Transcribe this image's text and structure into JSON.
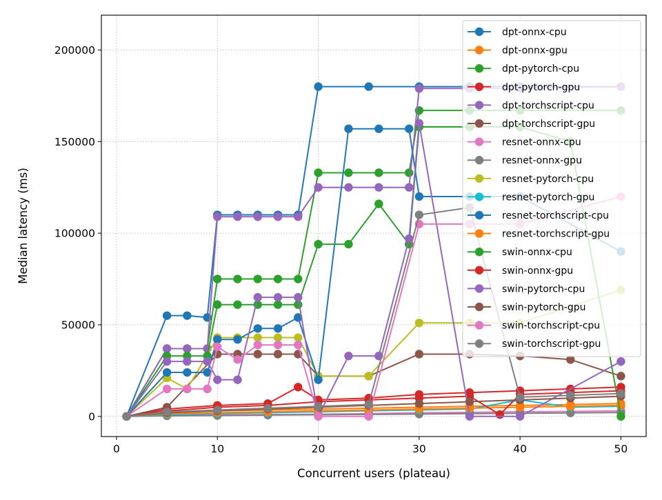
{
  "chart_data": {
    "type": "line",
    "xlabel": "Concurrent users (plateau)",
    "ylabel": "Median latency (ms)",
    "xlim": [
      -1.5,
      52.5
    ],
    "ylim": [
      -11000,
      219000
    ],
    "xticks": [
      0,
      10,
      20,
      30,
      40,
      50
    ],
    "yticks": [
      0,
      50000,
      100000,
      150000,
      200000
    ],
    "grid": "dotted",
    "legend_position": "upper right",
    "series": [
      {
        "name": "dpt-onnx-cpu",
        "color": "#1f77b4",
        "x": [
          1,
          5,
          7,
          9,
          10,
          12,
          14,
          16,
          18,
          20,
          25,
          30,
          35,
          40,
          50
        ],
        "y": [
          0,
          55000,
          55000,
          54000,
          110000,
          110000,
          110000,
          110000,
          110000,
          180000,
          180000,
          180000,
          180000,
          180000,
          180000
        ]
      },
      {
        "name": "dpt-onnx-gpu",
        "color": "#ff7f0e",
        "x": [
          1,
          5,
          10,
          15,
          20,
          25,
          30,
          35,
          40,
          45,
          50
        ],
        "y": [
          0,
          2000,
          3000,
          3500,
          4000,
          4500,
          5000,
          5500,
          6000,
          6500,
          7000
        ]
      },
      {
        "name": "dpt-pytorch-cpu",
        "color": "#2ca02c",
        "x": [
          1,
          5,
          7,
          9,
          10,
          12,
          14,
          16,
          18,
          20,
          23,
          26,
          29,
          30,
          35,
          40,
          50
        ],
        "y": [
          0,
          37000,
          37000,
          37000,
          75000,
          75000,
          75000,
          75000,
          75000,
          133000,
          133000,
          133000,
          133000,
          167000,
          167000,
          167000,
          167000
        ]
      },
      {
        "name": "dpt-pytorch-gpu",
        "color": "#d62728",
        "x": [
          1,
          5,
          10,
          15,
          18,
          20,
          25,
          30,
          35,
          40,
          45,
          50
        ],
        "y": [
          0,
          4000,
          6000,
          7000,
          16000,
          9000,
          10000,
          12000,
          13000,
          14000,
          15000,
          16000
        ]
      },
      {
        "name": "dpt-torchscript-cpu",
        "color": "#9467bd",
        "x": [
          1,
          5,
          7,
          9,
          10,
          12,
          14,
          16,
          18,
          20,
          23,
          26,
          29,
          30,
          35,
          40,
          50
        ],
        "y": [
          0,
          37000,
          37000,
          37000,
          109000,
          109000,
          109000,
          109000,
          109000,
          125000,
          125000,
          125000,
          125000,
          179000,
          179000,
          179000,
          180000
        ]
      },
      {
        "name": "dpt-torchscript-gpu",
        "color": "#8c564b",
        "x": [
          1,
          5,
          10,
          12,
          14,
          16,
          18,
          20,
          25,
          30,
          35,
          40,
          45,
          50
        ],
        "y": [
          0,
          5000,
          34000,
          34000,
          34000,
          34000,
          34000,
          22000,
          22000,
          34000,
          34000,
          33000,
          31000,
          22000
        ]
      },
      {
        "name": "resnet-onnx-cpu",
        "color": "#e377c2",
        "x": [
          1,
          5,
          10,
          15,
          20,
          25,
          30,
          35,
          40,
          50
        ],
        "y": [
          0,
          500,
          800,
          1000,
          1200,
          1500,
          2000,
          2200,
          2500,
          3000
        ]
      },
      {
        "name": "resnet-onnx-gpu",
        "color": "#7f7f7f",
        "x": [
          1,
          5,
          10,
          15,
          20,
          25,
          30,
          35,
          40,
          45,
          50
        ],
        "y": [
          0,
          300,
          500,
          700,
          900,
          1100,
          1300,
          1500,
          1700,
          1900,
          2100
        ]
      },
      {
        "name": "resnet-pytorch-cpu",
        "color": "#bcbd22",
        "x": [
          1,
          5,
          7,
          10,
          12,
          14,
          16,
          18,
          20,
          25,
          30,
          35,
          40,
          50
        ],
        "y": [
          0,
          21000,
          15000,
          43000,
          43000,
          43000,
          43000,
          43000,
          22000,
          22000,
          51000,
          51000,
          51000,
          69000
        ]
      },
      {
        "name": "resnet-pytorch-gpu",
        "color": "#17becf",
        "x": [
          1,
          5,
          10,
          15,
          20,
          25,
          30,
          35,
          40,
          45,
          50
        ],
        "y": [
          0,
          1000,
          1500,
          2000,
          2500,
          3000,
          3500,
          4000,
          9000,
          5000,
          5500
        ]
      },
      {
        "name": "resnet-torchscript-cpu",
        "color": "#1f77b4",
        "x": [
          1,
          5,
          7,
          9,
          10,
          12,
          14,
          16,
          18,
          20,
          23,
          26,
          29,
          30,
          35,
          40,
          50
        ],
        "y": [
          0,
          24000,
          24000,
          24000,
          42000,
          42000,
          48000,
          48000,
          54000,
          20000,
          157000,
          157000,
          157000,
          120000,
          120000,
          120000,
          90000
        ]
      },
      {
        "name": "resnet-torchscript-gpu",
        "color": "#ff7f0e",
        "x": [
          1,
          5,
          10,
          15,
          20,
          25,
          30,
          35,
          40,
          45,
          50
        ],
        "y": [
          0,
          1500,
          2000,
          2500,
          3000,
          3500,
          4000,
          4500,
          5000,
          5500,
          6000
        ]
      },
      {
        "name": "swin-onnx-cpu",
        "color": "#2ca02c",
        "x": [
          1,
          5,
          7,
          9,
          10,
          12,
          14,
          16,
          18,
          20,
          23,
          26,
          29,
          30,
          35,
          40,
          45,
          50
        ],
        "y": [
          0,
          33000,
          33000,
          33000,
          61000,
          61000,
          61000,
          61000,
          61000,
          94000,
          94000,
          116000,
          94000,
          158000,
          158000,
          158000,
          150000,
          0
        ]
      },
      {
        "name": "swin-onnx-gpu",
        "color": "#d62728",
        "x": [
          1,
          5,
          10,
          15,
          20,
          25,
          30,
          35,
          38,
          40,
          45,
          50
        ],
        "y": [
          0,
          3000,
          5000,
          6000,
          8000,
          9000,
          10000,
          11000,
          1000,
          12000,
          13000,
          14000
        ]
      },
      {
        "name": "swin-pytorch-cpu",
        "color": "#9467bd",
        "x": [
          1,
          5,
          7,
          9,
          10,
          12,
          14,
          16,
          18,
          20,
          23,
          26,
          29,
          30,
          35,
          40,
          50
        ],
        "y": [
          0,
          30000,
          30000,
          30000,
          20000,
          20000,
          65000,
          65000,
          65000,
          0,
          33000,
          33000,
          97000,
          160000,
          0,
          0,
          30000
        ]
      },
      {
        "name": "swin-pytorch-gpu",
        "color": "#8c564b",
        "x": [
          1,
          5,
          10,
          15,
          20,
          25,
          30,
          35,
          40,
          45,
          50
        ],
        "y": [
          0,
          2000,
          3000,
          4000,
          5000,
          6000,
          7000,
          8000,
          9000,
          10000,
          11000
        ]
      },
      {
        "name": "swin-torchscript-cpu",
        "color": "#e377c2",
        "x": [
          1,
          5,
          7,
          9,
          10,
          12,
          14,
          16,
          18,
          20,
          25,
          30,
          35,
          40,
          50
        ],
        "y": [
          0,
          15000,
          15000,
          15000,
          38000,
          31000,
          39000,
          39000,
          39000,
          0,
          0,
          105000,
          105000,
          105000,
          120000
        ]
      },
      {
        "name": "swin-torchscript-gpu",
        "color": "#7f7f7f",
        "x": [
          1,
          5,
          10,
          15,
          20,
          25,
          30,
          35,
          40,
          45,
          50
        ],
        "y": [
          0,
          2500,
          3500,
          4500,
          5500,
          6500,
          110000,
          114000,
          10500,
          11500,
          12500
        ]
      }
    ]
  }
}
